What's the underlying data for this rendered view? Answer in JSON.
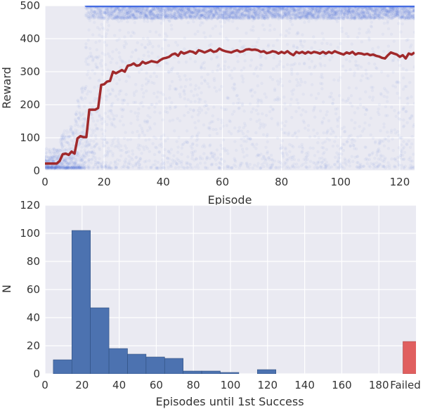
{
  "chart_data": [
    {
      "type": "scatter",
      "title": "",
      "xlabel": "Episode",
      "ylabel": "Reward",
      "xlim": [
        0,
        125
      ],
      "ylim": [
        0,
        500
      ],
      "x_ticks": [
        0,
        20,
        40,
        60,
        80,
        100,
        120
      ],
      "y_ticks": [
        0,
        100,
        200,
        300,
        400,
        500
      ],
      "grid": true,
      "scatter_color": "#4169e1",
      "max_reward": 500,
      "max_reward_reached_from_episode": 14,
      "mean_line_color": "#a0292b",
      "mean_line": {
        "x": [
          0,
          3,
          4,
          5,
          6,
          7,
          8,
          9,
          10,
          11,
          12,
          13,
          14,
          15,
          16,
          17,
          18,
          19,
          20,
          21,
          22,
          23,
          24,
          25,
          26,
          27,
          28,
          29,
          30,
          31,
          32,
          33,
          34,
          35,
          36,
          37,
          38,
          39,
          40,
          41,
          42,
          43,
          44,
          45,
          46,
          47,
          48,
          49,
          50,
          51,
          52,
          53,
          54,
          55,
          56,
          57,
          58,
          59,
          60,
          61,
          62,
          63,
          64,
          65,
          66,
          67,
          68,
          69,
          70,
          71,
          72,
          73,
          74,
          75,
          76,
          77,
          78,
          79,
          80,
          81,
          82,
          83,
          84,
          85,
          86,
          87,
          88,
          89,
          90,
          91,
          92,
          93,
          94,
          95,
          96,
          97,
          98,
          99,
          100,
          101,
          102,
          103,
          104,
          105,
          106,
          107,
          108,
          109,
          110,
          111,
          112,
          113,
          114,
          115,
          116,
          117,
          118,
          119,
          120,
          121,
          122,
          123,
          124,
          125
        ],
        "y": [
          22,
          22,
          22,
          30,
          50,
          52,
          48,
          58,
          52,
          98,
          105,
          102,
          102,
          185,
          185,
          185,
          190,
          260,
          262,
          270,
          272,
          300,
          295,
          300,
          305,
          300,
          318,
          320,
          325,
          318,
          320,
          330,
          325,
          328,
          332,
          330,
          328,
          335,
          340,
          342,
          345,
          352,
          355,
          348,
          360,
          355,
          358,
          362,
          360,
          355,
          365,
          362,
          358,
          362,
          366,
          360,
          362,
          370,
          365,
          362,
          360,
          358,
          362,
          365,
          360,
          362,
          367,
          368,
          366,
          367,
          365,
          360,
          362,
          356,
          358,
          362,
          360,
          355,
          360,
          356,
          362,
          355,
          350,
          360,
          356,
          360,
          355,
          360,
          356,
          360,
          358,
          355,
          360,
          355,
          360,
          356,
          362,
          358,
          355,
          352,
          358,
          355,
          360,
          352,
          356,
          355,
          352,
          354,
          350,
          352,
          348,
          346,
          342,
          340,
          350,
          358,
          355,
          352,
          345,
          350,
          340,
          355,
          352,
          358
        ]
      }
    },
    {
      "type": "bar",
      "title": "",
      "xlabel": "Episodes until 1st Success",
      "ylabel": "N",
      "xlim": [
        0,
        200
      ],
      "ylim": [
        0,
        120
      ],
      "x_ticks": [
        0,
        20,
        40,
        60,
        80,
        100,
        120,
        140,
        160,
        180
      ],
      "x_tick_labels": [
        "0",
        "20",
        "40",
        "60",
        "80",
        "100",
        "120",
        "140",
        "160",
        "180"
      ],
      "extra_tick_label": "Failed",
      "y_ticks": [
        0,
        20,
        40,
        60,
        80,
        100,
        120
      ],
      "grid": true,
      "bar_color": "#4c72b0",
      "failed_color": "#e05f5f",
      "bins": [
        {
          "x0": 4.5,
          "x1": 14.5,
          "value": 10
        },
        {
          "x0": 14.5,
          "x1": 24.5,
          "value": 102
        },
        {
          "x0": 24.5,
          "x1": 34.5,
          "value": 47
        },
        {
          "x0": 34.5,
          "x1": 44.5,
          "value": 18
        },
        {
          "x0": 44.5,
          "x1": 54.5,
          "value": 14
        },
        {
          "x0": 54.5,
          "x1": 64.5,
          "value": 12
        },
        {
          "x0": 64.5,
          "x1": 74.5,
          "value": 11
        },
        {
          "x0": 74.5,
          "x1": 84.5,
          "value": 2
        },
        {
          "x0": 84.5,
          "x1": 94.5,
          "value": 2
        },
        {
          "x0": 94.5,
          "x1": 104.5,
          "value": 1
        },
        {
          "x0": 104.5,
          "x1": 114.5,
          "value": 0
        },
        {
          "x0": 114.5,
          "x1": 124.5,
          "value": 3
        }
      ],
      "failed": {
        "x0": 193,
        "x1": 202.5,
        "value": 23
      }
    }
  ]
}
